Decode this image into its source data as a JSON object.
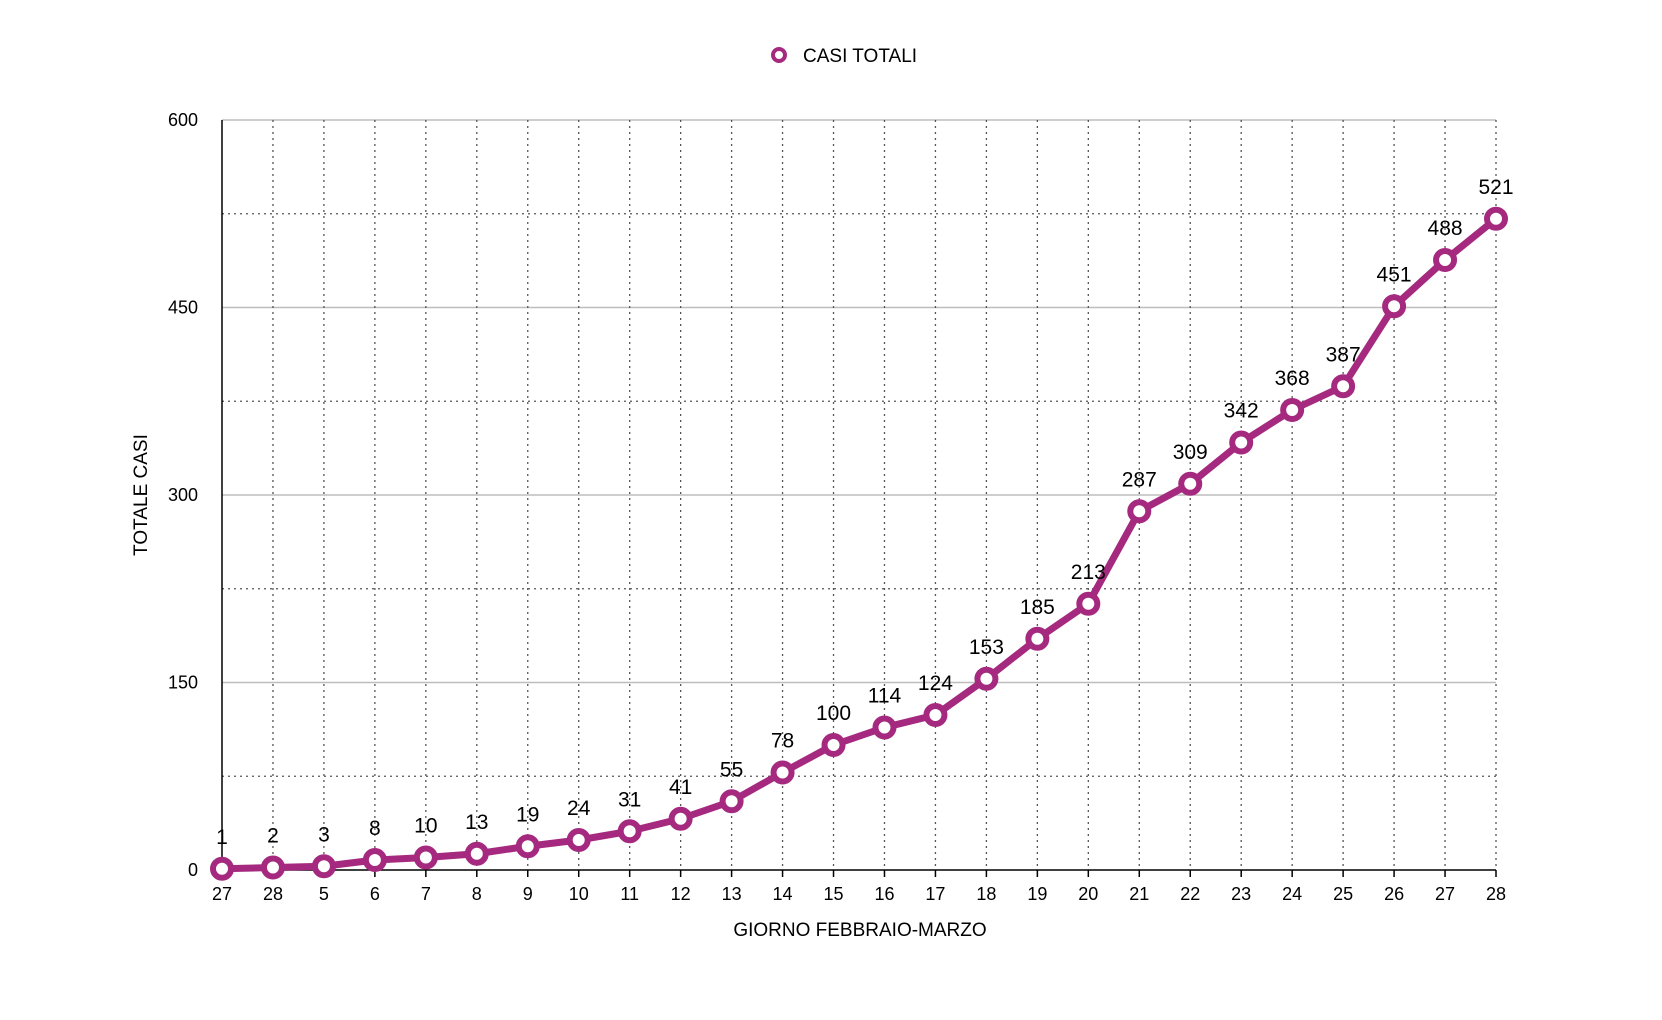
{
  "chart_data": {
    "type": "line",
    "title": "",
    "xlabel": "GIORNO FEBBRAIO-MARZO",
    "ylabel": "TOTALE CASI",
    "categories": [
      "27",
      "28",
      "5",
      "6",
      "7",
      "8",
      "9",
      "10",
      "11",
      "12",
      "13",
      "14",
      "15",
      "16",
      "17",
      "18",
      "19",
      "20",
      "21",
      "22",
      "23",
      "24",
      "25",
      "26",
      "27",
      "28"
    ],
    "series": [
      {
        "name": "CASI TOTALI",
        "color": "#a52a7f",
        "values": [
          1,
          2,
          3,
          8,
          10,
          13,
          19,
          24,
          31,
          41,
          55,
          78,
          100,
          114,
          124,
          153,
          185,
          213,
          287,
          309,
          342,
          368,
          387,
          451,
          488,
          521
        ]
      }
    ],
    "ylim": [
      0,
      600
    ],
    "yticks": [
      0,
      150,
      300,
      450,
      600
    ],
    "grid": true,
    "legend_position": "top-center"
  }
}
